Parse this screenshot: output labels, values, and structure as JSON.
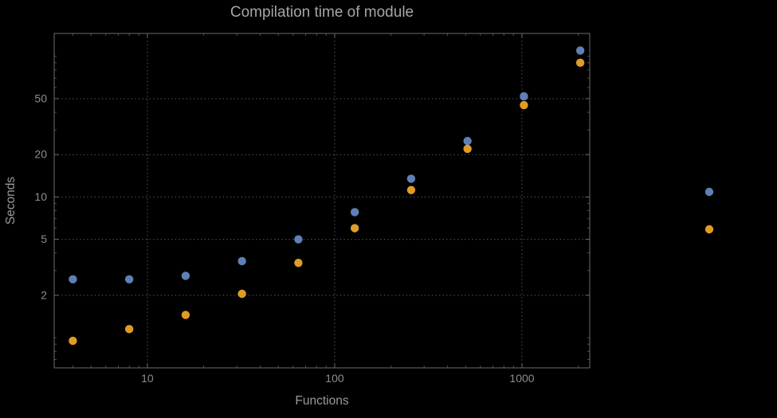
{
  "chart_data": {
    "type": "scatter",
    "title": "Compilation time of module",
    "xlabel": "Functions",
    "ylabel": "Seconds",
    "xscale": "log",
    "yscale": "log",
    "xlim": [
      3.18,
      2300
    ],
    "ylim": [
      0.61,
      145.5
    ],
    "x_tick_labels": [
      10,
      100,
      1000
    ],
    "y_tick_labels": [
      2,
      5,
      10,
      20,
      50
    ],
    "grid": "dotted",
    "x": [
      4,
      8,
      16,
      32,
      64,
      128,
      256,
      512,
      1024,
      2048
    ],
    "series": [
      {
        "name": "blue-points",
        "color": "#5e81b5",
        "values": [
          2.6,
          2.6,
          2.75,
          3.5,
          5.0,
          7.8,
          13.5,
          25,
          52,
          110
        ]
      },
      {
        "name": "orange-points",
        "color": "#e19c24",
        "values": [
          0.95,
          1.15,
          1.45,
          2.05,
          3.4,
          6.0,
          11.2,
          22,
          45,
          90
        ]
      }
    ],
    "legend_markers": [
      {
        "name": "blue-series-marker",
        "color": "#5e81b5"
      },
      {
        "name": "orange-series-marker",
        "color": "#e19c24"
      }
    ],
    "legend_position": "right"
  },
  "colors": {
    "background": "#000000",
    "title_text": "#a6a6a6",
    "axis_label_text": "#9a9a9a",
    "tick_label_text": "#8c8c8c",
    "frame": "#6b6b6b",
    "grid": "#5a5a5a",
    "blue_series": "#5e81b5",
    "orange_series": "#e19c24"
  }
}
